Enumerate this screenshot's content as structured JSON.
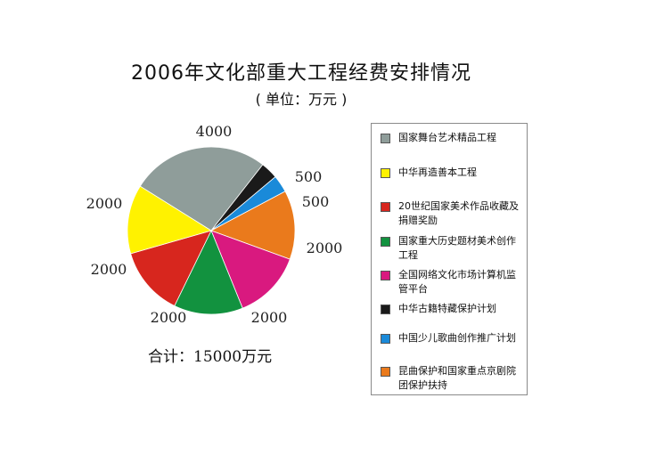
{
  "chart_data": {
    "type": "pie",
    "title": "2006年文化部重大工程经费安排情况",
    "subtitle": "( 单位：万元 )",
    "total_label": "合计：15000万元",
    "slices": [
      {
        "name": "国家舞台艺术精品工程",
        "value": 4000,
        "label": "4000",
        "color": "#8f9d9a"
      },
      {
        "name": "中华再造善本工程",
        "value": 2000,
        "label": "2000",
        "color": "#fff200"
      },
      {
        "name": "20世纪国家美术作品收藏及捐赠奖励",
        "value": 2000,
        "label": "2000",
        "color": "#d7261e"
      },
      {
        "name": "国家重大历史题材美术创作工程",
        "value": 2000,
        "label": "2000",
        "color": "#12923f"
      },
      {
        "name": "全国网络文化市场计算机监管平台",
        "value": 2000,
        "label": "2000",
        "color": "#d9197f"
      },
      {
        "name": "中华古籍特藏保护计划",
        "value": 500,
        "label": "500",
        "color": "#1a1a1a"
      },
      {
        "name": "中国少儿歌曲创作推广计划",
        "value": 500,
        "label": "500",
        "color": "#1a8ad9"
      },
      {
        "name": "昆曲保护和国家重点京剧院团保护扶持",
        "value": 2000,
        "label": "2000",
        "color": "#ea7a1c"
      }
    ],
    "legend_position": "right"
  },
  "legend": [
    {
      "label": "国家舞台艺术精品工程",
      "color": "#8f9d9a"
    },
    {
      "label": "中华再造善本工程",
      "color": "#fff200"
    },
    {
      "label": "20世纪国家美术作品收藏及捐赠奖励",
      "color": "#d7261e"
    },
    {
      "label": "国家重大历史题材美术创作工程",
      "color": "#12923f"
    },
    {
      "label": "全国网络文化市场计算机监管平台",
      "color": "#d9197f"
    },
    {
      "label": "中华古籍特藏保护计划",
      "color": "#1a1a1a"
    },
    {
      "label": "中国少儿歌曲创作推广计划",
      "color": "#1a8ad9"
    },
    {
      "label": "昆曲保护和国家重点京剧院团保护扶持",
      "color": "#ea7a1c"
    }
  ]
}
